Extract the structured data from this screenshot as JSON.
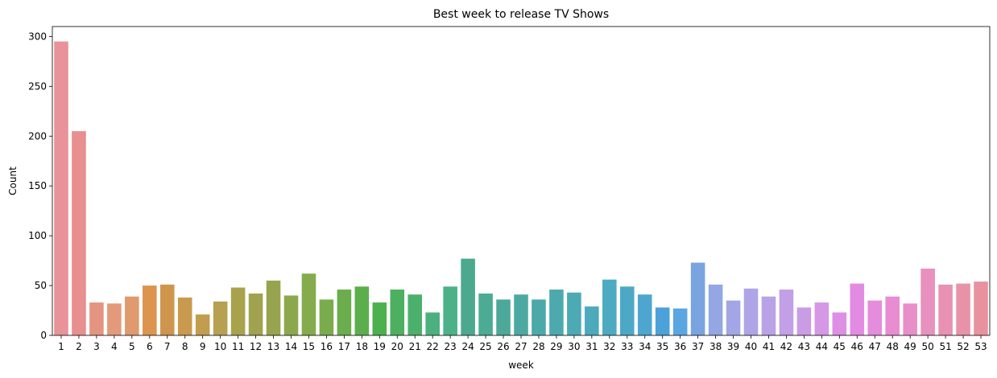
{
  "chart_data": {
    "type": "bar",
    "title": "Best week to release TV Shows",
    "xlabel": "week",
    "ylabel": "Count",
    "ylim": [
      0,
      310
    ],
    "yticks": [
      0,
      50,
      100,
      150,
      200,
      250,
      300
    ],
    "grid": false,
    "legend": "none",
    "categories": [
      "1",
      "2",
      "3",
      "4",
      "5",
      "6",
      "7",
      "8",
      "9",
      "10",
      "11",
      "12",
      "13",
      "14",
      "15",
      "16",
      "17",
      "18",
      "19",
      "20",
      "21",
      "22",
      "23",
      "24",
      "25",
      "26",
      "27",
      "28",
      "29",
      "30",
      "31",
      "32",
      "33",
      "34",
      "35",
      "36",
      "37",
      "38",
      "39",
      "40",
      "41",
      "42",
      "43",
      "44",
      "45",
      "46",
      "47",
      "48",
      "49",
      "50",
      "51",
      "52",
      "53"
    ],
    "values": [
      295,
      205,
      33,
      32,
      39,
      50,
      51,
      38,
      21,
      34,
      48,
      42,
      55,
      40,
      62,
      36,
      46,
      49,
      33,
      46,
      41,
      23,
      49,
      77,
      42,
      36,
      41,
      36,
      46,
      43,
      29,
      56,
      49,
      41,
      28,
      27,
      73,
      51,
      35,
      47,
      39,
      46,
      28,
      33,
      23,
      52,
      35,
      39,
      32,
      67,
      51,
      52,
      54
    ],
    "colors": [
      "#e8929a",
      "#e88f8f",
      "#e69482",
      "#e39a7a",
      "#e09a6e",
      "#dd944f",
      "#cf954d",
      "#c99a4d",
      "#c39d4f",
      "#b7a04f",
      "#a9a24d",
      "#a1a24d",
      "#97a44d",
      "#8ca84d",
      "#84ac4d",
      "#7aac4d",
      "#6bad4d",
      "#5cae4d",
      "#4cb04d",
      "#4cb060",
      "#4cb06d",
      "#4cb07e",
      "#4cb088",
      "#4ca98f",
      "#4cab94",
      "#4ca99a",
      "#4ca9a1",
      "#4ca9a9",
      "#4caaaf",
      "#4caab4",
      "#4caabb",
      "#4cabc0",
      "#4ca9c6",
      "#4ca6cf",
      "#4ca1d9",
      "#5aa6e0",
      "#7aa4e0",
      "#94a6e3",
      "#a3a6e5",
      "#aea4e6",
      "#b9a2e6",
      "#c29fe6",
      "#ca9ce6",
      "#d498e6",
      "#dd8fe6",
      "#e38be3",
      "#e68cdc",
      "#e88dd2",
      "#e88fca",
      "#e890be",
      "#e891b3",
      "#e892a8",
      "#e8929f"
    ]
  }
}
